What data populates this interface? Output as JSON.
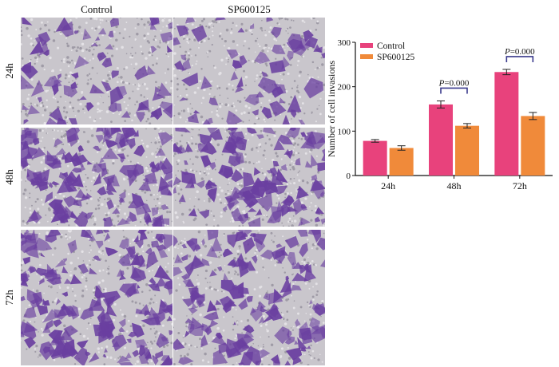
{
  "panel": {
    "columns": [
      "Control",
      "SP600125"
    ],
    "rows": [
      "24h",
      "48h",
      "72h"
    ]
  },
  "colors": {
    "stain": "#6a3fa0",
    "background_field": "#c9c6cc",
    "control": "#e8427c",
    "sp600125": "#f08a3a",
    "bracket": "#3a3a8c"
  },
  "chart_data": {
    "type": "bar",
    "categories": [
      "24h",
      "48h",
      "72h"
    ],
    "series": [
      {
        "name": "Control",
        "values": [
          78,
          160,
          233
        ],
        "errors": [
          3,
          8,
          6
        ]
      },
      {
        "name": "SP600125",
        "values": [
          62,
          112,
          134
        ],
        "errors": [
          5,
          5,
          8
        ]
      }
    ],
    "ylabel": "Number of cell invasions",
    "xlabel": "",
    "ylim": [
      0,
      300
    ],
    "yticks": [
      0,
      100,
      200,
      300
    ],
    "legend": "top-left",
    "annotations": [
      {
        "category": "48h",
        "text": "P=0.000"
      },
      {
        "category": "72h",
        "text": "P=0.000"
      }
    ]
  }
}
